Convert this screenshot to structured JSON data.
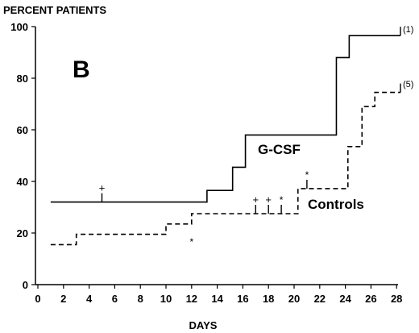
{
  "chart_data": {
    "type": "line",
    "title": "",
    "panel_label": "B",
    "ylabel": "PERCENT PATIENTS",
    "xlabel": "DAYS",
    "xlim": [
      0,
      29
    ],
    "ylim": [
      0,
      100
    ],
    "x_ticks": [
      0,
      2,
      4,
      6,
      8,
      10,
      12,
      14,
      16,
      18,
      20,
      22,
      24,
      26,
      28
    ],
    "y_ticks": [
      0,
      20,
      40,
      60,
      80,
      100
    ],
    "grid": false,
    "series": [
      {
        "name": "G-CSF",
        "style": "solid",
        "end_label": "(1)",
        "steps": [
          {
            "x": 1,
            "y": 32
          },
          {
            "x": 13.2,
            "y": 36.5
          },
          {
            "x": 15.2,
            "y": 45.5
          },
          {
            "x": 16.2,
            "y": 58
          },
          {
            "x": 23.3,
            "y": 88
          },
          {
            "x": 24.3,
            "y": 96.5
          }
        ],
        "x_end": 28.3,
        "censored": [
          {
            "x": 5,
            "y": 32,
            "symbol": "+"
          },
          {
            "x": 28.3,
            "y": 96.5,
            "symbol": ""
          }
        ]
      },
      {
        "name": "Controls",
        "style": "dashed",
        "end_label": "(5)",
        "steps": [
          {
            "x": 1,
            "y": 15.5
          },
          {
            "x": 3,
            "y": 19.5
          },
          {
            "x": 10,
            "y": 23.5
          },
          {
            "x": 12,
            "y": 27.5
          },
          {
            "x": 20.3,
            "y": 37.2
          },
          {
            "x": 24.2,
            "y": 53.5
          },
          {
            "x": 25.3,
            "y": 69
          },
          {
            "x": 26.3,
            "y": 74.5
          }
        ],
        "x_end": 28.3,
        "censored": [
          {
            "x": 17,
            "y": 27.5,
            "symbol": "+"
          },
          {
            "x": 18,
            "y": 27.5,
            "symbol": "+"
          },
          {
            "x": 19,
            "y": 27.5,
            "symbol": "*"
          },
          {
            "x": 21,
            "y": 37.2,
            "symbol": "*"
          },
          {
            "x": 28.3,
            "y": 74.5,
            "symbol": ""
          }
        ],
        "below_marks": [
          {
            "x": 12,
            "y": 23.5,
            "symbol": "*"
          }
        ]
      }
    ]
  }
}
